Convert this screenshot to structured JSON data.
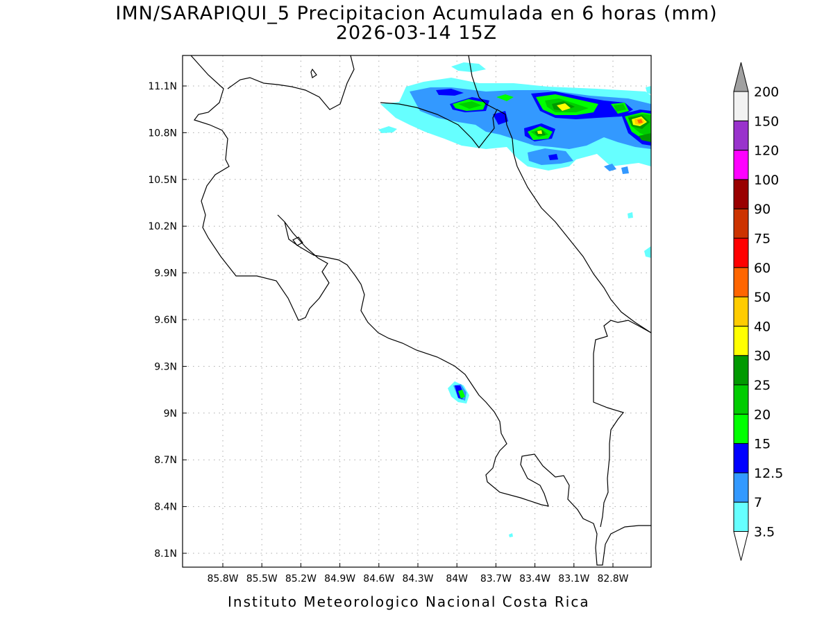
{
  "title": {
    "line1": "IMN/SARAPIQUI_5 Precipitacion Acumulada en 6 horas (mm)",
    "line2": "2026-03-14 15Z"
  },
  "footer": "Instituto Meteorologico Nacional Costa Rica",
  "map": {
    "lon_range": [
      -86.0,
      -82.5
    ],
    "lat_range": [
      8.0,
      11.3
    ],
    "lon_ticks": [
      {
        "value": -85.8,
        "label": "85.8W"
      },
      {
        "value": -85.5,
        "label": "85.5W"
      },
      {
        "value": -85.2,
        "label": "85.2W"
      },
      {
        "value": -84.9,
        "label": "84.9W"
      },
      {
        "value": -84.6,
        "label": "84.6W"
      },
      {
        "value": -84.3,
        "label": "84.3W"
      },
      {
        "value": -84.0,
        "label": "84W"
      },
      {
        "value": -83.7,
        "label": "83.7W"
      },
      {
        "value": -83.4,
        "label": "83.4W"
      },
      {
        "value": -83.1,
        "label": "83.1W"
      },
      {
        "value": -82.8,
        "label": "82.8W"
      }
    ],
    "lat_ticks": [
      {
        "value": 11.1,
        "label": "11.1N"
      },
      {
        "value": 10.8,
        "label": "10.8N"
      },
      {
        "value": 10.5,
        "label": "10.5N"
      },
      {
        "value": 10.2,
        "label": "10.2N"
      },
      {
        "value": 9.9,
        "label": "9.9N"
      },
      {
        "value": 9.6,
        "label": "9.6N"
      },
      {
        "value": 9.3,
        "label": "9.3N"
      },
      {
        "value": 9.0,
        "label": "9N"
      },
      {
        "value": 8.7,
        "label": "8.7N"
      },
      {
        "value": 8.4,
        "label": "8.4N"
      },
      {
        "value": 8.1,
        "label": "8.1N"
      }
    ],
    "grid": "dotted"
  },
  "colorbar": {
    "levels": [
      {
        "label": "3.5",
        "color": "#66ffff"
      },
      {
        "label": "7",
        "color": "#3399ff"
      },
      {
        "label": "12.5",
        "color": "#0000ff"
      },
      {
        "label": "15",
        "color": "#00ff00"
      },
      {
        "label": "20",
        "color": "#00cc00"
      },
      {
        "label": "25",
        "color": "#009900"
      },
      {
        "label": "30",
        "color": "#ffff00"
      },
      {
        "label": "40",
        "color": "#ffcc00"
      },
      {
        "label": "50",
        "color": "#ff6600"
      },
      {
        "label": "60",
        "color": "#ff0000"
      },
      {
        "label": "75",
        "color": "#cc3300"
      },
      {
        "label": "90",
        "color": "#990000"
      },
      {
        "label": "100",
        "color": "#ff00ff"
      },
      {
        "label": "120",
        "color": "#9933cc"
      },
      {
        "label": "150",
        "color": "#f2f2f2"
      },
      {
        "label": "200",
        "color": "#a0a0a0"
      }
    ],
    "low_end_color": "#ffffff",
    "high_end_color": "#a0a0a0"
  }
}
